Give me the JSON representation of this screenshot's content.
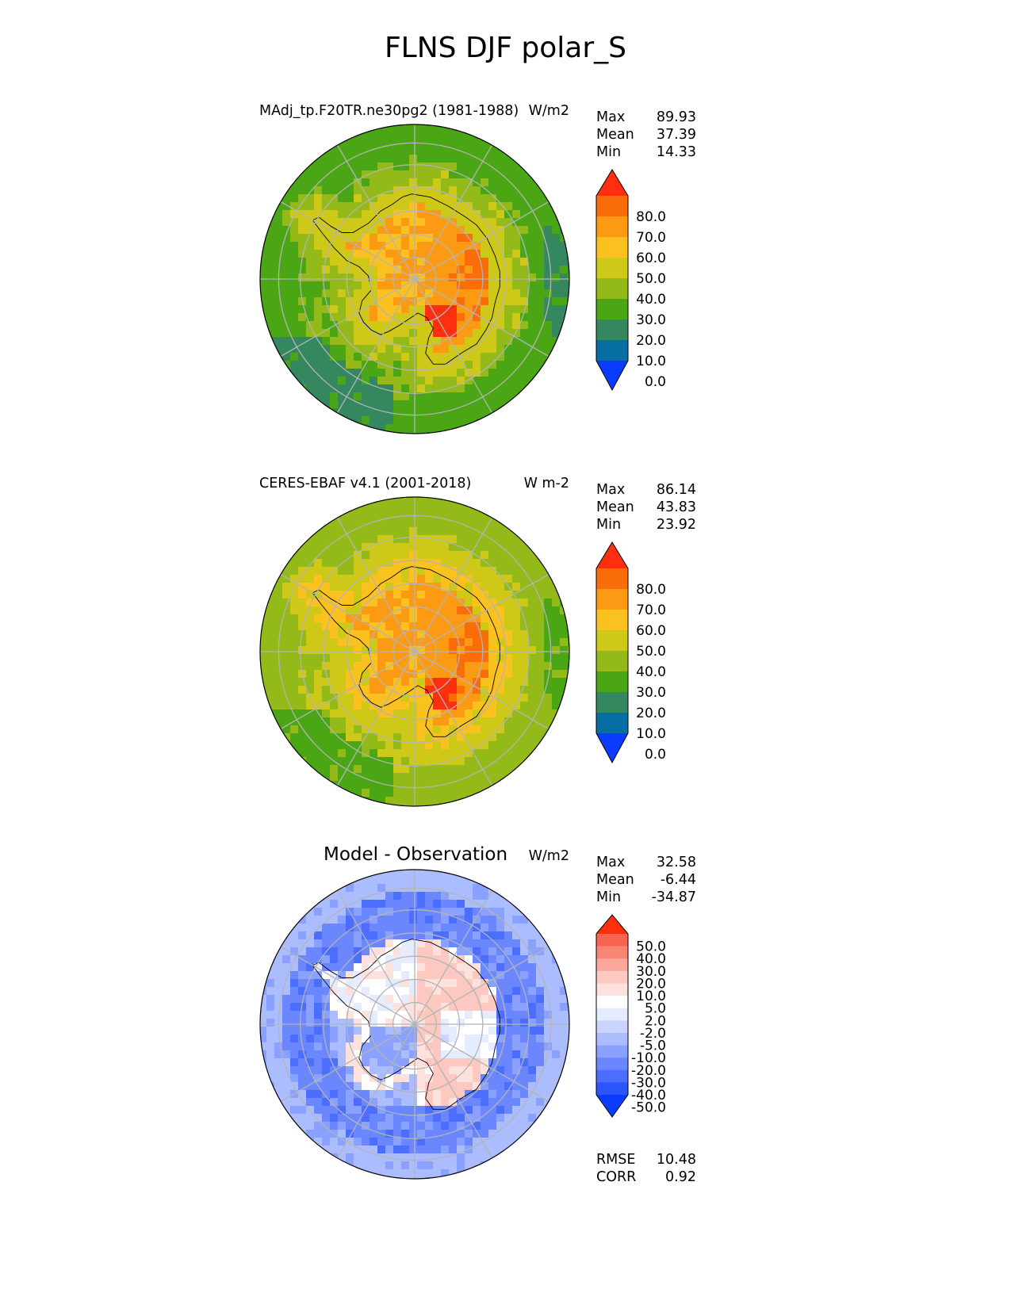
{
  "figure": {
    "title": "FLNS DJF polar_S"
  },
  "chart_data": [
    {
      "type": "heatmap",
      "projection": "south-polar-stereographic",
      "title": "MAdj_tp.F20TR.ne30pg2 (1981-1988)",
      "units": "W/m2",
      "stats": {
        "Max": "89.93",
        "Mean": "37.39",
        "Min": "14.33"
      },
      "colorbar": {
        "labels": [
          "80.0",
          "70.0",
          "60.0",
          "50.0",
          "40.0",
          "30.0",
          "20.0",
          "10.0",
          "0.0"
        ],
        "levels": [
          0,
          10,
          20,
          30,
          40,
          50,
          60,
          70,
          80
        ],
        "colors": [
          "#0a3cff",
          "#066ea1",
          "#34875e",
          "#4aa615",
          "#94ba1a",
          "#cec919",
          "#fbc11f",
          "#fc9a13",
          "#fb6d08",
          "#fe2f0e"
        ],
        "extend": "both"
      },
      "field": {
        "ocean_outer": 25,
        "ocean_mid": 30,
        "coastal_ring": 38,
        "coast_edge": 45,
        "interior": 60,
        "east_plateau": 70,
        "local_max": 85,
        "low_cells": 18
      }
    },
    {
      "type": "heatmap",
      "projection": "south-polar-stereographic",
      "title": "CERES-EBAF v4.1 (2001-2018)",
      "units": "W m-2",
      "stats": {
        "Max": "86.14",
        "Mean": "43.83",
        "Min": "23.92"
      },
      "colorbar": {
        "labels": [
          "80.0",
          "70.0",
          "60.0",
          "50.0",
          "40.0",
          "30.0",
          "20.0",
          "10.0",
          "0.0"
        ],
        "levels": [
          0,
          10,
          20,
          30,
          40,
          50,
          60,
          70,
          80
        ],
        "colors": [
          "#0a3cff",
          "#066ea1",
          "#34875e",
          "#4aa615",
          "#94ba1a",
          "#cec919",
          "#fbc11f",
          "#fc9a13",
          "#fb6d08",
          "#fe2f0e"
        ],
        "extend": "both"
      },
      "field": {
        "ocean_outer": 35,
        "ocean_mid": 40,
        "coastal_ring": 45,
        "coast_edge": 52,
        "interior": 62,
        "east_plateau": 70,
        "local_max": 82,
        "low_cells": 28
      }
    },
    {
      "type": "heatmap",
      "projection": "south-polar-stereographic",
      "title": "Model - Observation",
      "units": "W/m2",
      "stats": {
        "Max": "32.58",
        "Mean": "-6.44",
        "Min": "-34.87"
      },
      "extra_stats": {
        "RMSE": "10.48",
        "CORR": "0.92"
      },
      "colorbar": {
        "labels": [
          "50.0",
          "40.0",
          "30.0",
          "20.0",
          "10.0",
          "5.0",
          "2.0",
          "-2.0",
          "-5.0",
          "-10.0",
          "-20.0",
          "-30.0",
          "-40.0",
          "-50.0"
        ],
        "levels": [
          -50,
          -40,
          -30,
          -20,
          -10,
          -5,
          -2,
          2,
          5,
          10,
          20,
          30,
          40,
          50
        ],
        "colors": [
          "#0a3cff",
          "#2c55ff",
          "#4c6eff",
          "#6a87ff",
          "#8aa1ff",
          "#abbcff",
          "#cad4ff",
          "#e6ecff",
          "#ffffff",
          "#fde1dd",
          "#fcc8c0",
          "#fba89b",
          "#f98574",
          "#f76450",
          "#fe2f0e"
        ],
        "extend": "both"
      },
      "field": {
        "ocean_outer": -8,
        "ocean_mid": -15,
        "coastal_ring": -8,
        "coast_edge": 5,
        "interior": 12,
        "east_plateau": 8,
        "local_max": 15,
        "low_cells": -25
      }
    }
  ]
}
